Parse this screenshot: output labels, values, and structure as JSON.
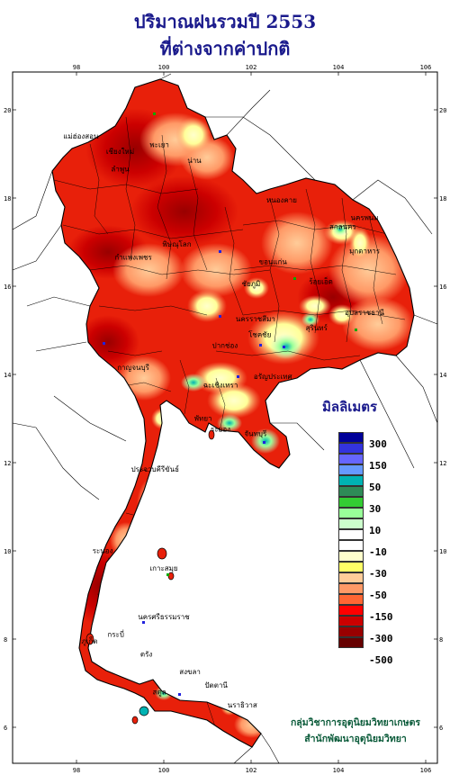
{
  "title": {
    "line1": "ปริมาณฝนรวมปี  2553",
    "line2": "ที่ต่างจากค่าปกติ"
  },
  "axes": {
    "lon_ticks": [
      "98",
      "100",
      "102",
      "104",
      "106"
    ],
    "lat_ticks": [
      "20",
      "18",
      "16",
      "14",
      "12",
      "10",
      "8",
      "6"
    ]
  },
  "map": {
    "provinces": [
      {
        "name": "แม่ฮ่องสอน",
        "lon": 98.1,
        "lat": 19.35
      },
      {
        "name": "เชียงใหม่",
        "lon": 99.0,
        "lat": 19.0
      },
      {
        "name": "ลำพูน",
        "lon": 99.0,
        "lat": 18.6
      },
      {
        "name": "พะเยา",
        "lon": 99.9,
        "lat": 19.15
      },
      {
        "name": "น่าน",
        "lon": 100.7,
        "lat": 18.8
      },
      {
        "name": "หนองคาย",
        "lon": 102.7,
        "lat": 17.9
      },
      {
        "name": "สกลนคร",
        "lon": 104.1,
        "lat": 17.3
      },
      {
        "name": "นครพนม",
        "lon": 104.6,
        "lat": 17.5
      },
      {
        "name": "มุกดาหาร",
        "lon": 104.6,
        "lat": 16.75
      },
      {
        "name": "พิษณุโลก",
        "lon": 100.3,
        "lat": 16.9
      },
      {
        "name": "กำแพงเพชร",
        "lon": 99.3,
        "lat": 16.6
      },
      {
        "name": "ขอนแก่น",
        "lon": 102.5,
        "lat": 16.5
      },
      {
        "name": "ชัยภูมิ",
        "lon": 102.0,
        "lat": 16.0
      },
      {
        "name": "ร้อยเอ็ด",
        "lon": 103.6,
        "lat": 16.05
      },
      {
        "name": "อุบลราชธานี",
        "lon": 104.6,
        "lat": 15.35
      },
      {
        "name": "นครราชสีมา",
        "lon": 102.1,
        "lat": 15.2
      },
      {
        "name": "โชคชัย",
        "lon": 102.2,
        "lat": 14.85
      },
      {
        "name": "สุรินทร์",
        "lon": 103.5,
        "lat": 15.0
      },
      {
        "name": "ปากช่อง",
        "lon": 101.4,
        "lat": 14.6
      },
      {
        "name": "กาญจนบุรี",
        "lon": 99.3,
        "lat": 14.1
      },
      {
        "name": "อรัญประเทศ",
        "lon": 102.5,
        "lat": 13.9
      },
      {
        "name": "ฉะเชิงเทรา",
        "lon": 101.3,
        "lat": 13.7
      },
      {
        "name": "พัทยา",
        "lon": 100.9,
        "lat": 12.95
      },
      {
        "name": "ระยอง",
        "lon": 101.3,
        "lat": 12.7
      },
      {
        "name": "จันทบุรี",
        "lon": 102.1,
        "lat": 12.6
      },
      {
        "name": "ประจวบคีรีขันธ์",
        "lon": 99.8,
        "lat": 11.8
      },
      {
        "name": "เกาะสมุย",
        "lon": 100.0,
        "lat": 9.55
      },
      {
        "name": "ระนอง",
        "lon": 98.6,
        "lat": 9.95
      },
      {
        "name": "นครศรีธรรมราช",
        "lon": 100.0,
        "lat": 8.45
      },
      {
        "name": "กระบี่",
        "lon": 98.9,
        "lat": 8.05
      },
      {
        "name": "ภูเก็ต",
        "lon": 98.3,
        "lat": 7.9
      },
      {
        "name": "ตรัง",
        "lon": 99.6,
        "lat": 7.6
      },
      {
        "name": "สงขลา",
        "lon": 100.6,
        "lat": 7.2
      },
      {
        "name": "ปัตตานี",
        "lon": 101.2,
        "lat": 6.9
      },
      {
        "name": "นราธิวาส",
        "lon": 101.8,
        "lat": 6.45
      },
      {
        "name": "สตูล",
        "lon": 99.9,
        "lat": 6.75
      }
    ]
  },
  "legend": {
    "unit": "มิลลิเมตร",
    "colors": [
      "#000099",
      "#3333dd",
      "#6666ff",
      "#6699ff",
      "#00b3b3",
      "#2e8b57",
      "#33cc33",
      "#99ff99",
      "#ccffcc",
      "#ffffff",
      "#ffffff",
      "#ffffcc",
      "#ffff66",
      "#ffcc99",
      "#ff9966",
      "#ff6633",
      "#ff0000",
      "#cc0000",
      "#990000",
      "#660000"
    ],
    "labels": [
      "300",
      "150",
      "50",
      "30",
      "10",
      "-10",
      "-30",
      "-50",
      "-150",
      "-300",
      "-500"
    ]
  },
  "credit": {
    "line1": "กลุ่มวิชาการอุตุนิยมวิทยาเกษตร",
    "line2": "สำนักพัฒนาอุตุนิยมวิทยา"
  }
}
